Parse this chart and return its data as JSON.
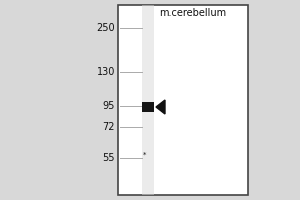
{
  "bg_color": "#d8d8d8",
  "panel_bg": "#f0f0f0",
  "white_bg": "#ffffff",
  "border_color": "#444444",
  "lane_color": "#d0d0d0",
  "band_color": "#151515",
  "arrow_color": "#111111",
  "sample_label": "m.cerebellum",
  "mw_markers": [
    250,
    130,
    95,
    72,
    55
  ],
  "text_color": "#111111",
  "marker_line_color": "#aaaaaa",
  "fig_width": 3.0,
  "fig_height": 2.0,
  "dpi": 100
}
